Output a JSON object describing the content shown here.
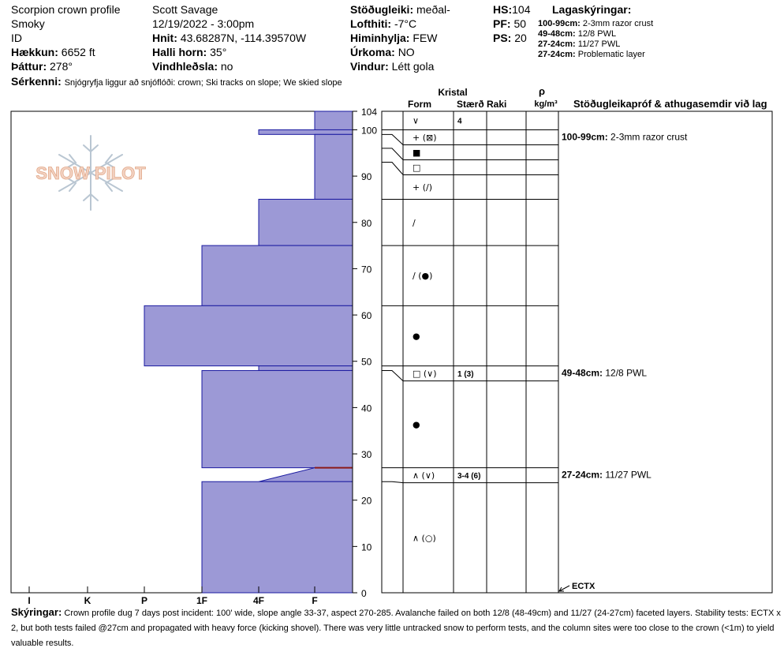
{
  "header": {
    "title": "Scorpion crown profile",
    "range": "Smoky",
    "id": "ID",
    "elevation_label": "Hækkun:",
    "elevation": "6652 ft",
    "aspect_label": "Þáttur:",
    "aspect": "278°",
    "observer": "Scott Savage",
    "datetime": "12/19/2022 - 3:00pm",
    "coords_label": "Hnit:",
    "coords": "43.68287N, -114.39570W",
    "slope_label": "Halli horn:",
    "slope": "35°",
    "wind_loading_label": "Vindhleðsla:",
    "wind_loading": "no",
    "stability_label": "Stöðugleiki:",
    "stability": "meðal-",
    "air_temp_label": "Lofthiti:",
    "air_temp": "-7°C",
    "sky_label": "Himinhylja:",
    "sky": "FEW",
    "precip_label": "Úrkoma:",
    "precip": "NO",
    "wind_label": "Vindur:",
    "wind": "Létt gola",
    "hs_label": "HS:",
    "hs": "104",
    "pf_label": "PF:",
    "pf": "50",
    "ps_label": "PS:",
    "ps": "20",
    "features_label": "Sérkenni:",
    "features": "Snjógryfja liggur að snjóflóði: crown; Ski tracks on slope; We skied slope"
  },
  "legend": {
    "title": "Lagaskýringar:",
    "items": [
      {
        "range": "100-99cm:",
        "text": "2-3mm razor crust"
      },
      {
        "range": "49-48cm:",
        "text": "12/8 PWL"
      },
      {
        "range": "27-24cm:",
        "text": "11/27 PWL"
      },
      {
        "range": "27-24cm:",
        "text": "Problematic layer"
      }
    ]
  },
  "logo": {
    "text": "SNOW PILOT"
  },
  "columns": {
    "crystal": "Kristal",
    "form": "Form",
    "size": "Stærð",
    "moisture": "Raki",
    "rho": "ρ",
    "density_unit": "kg/m³",
    "tests": "Stöðugleikapróf & athugasemdir við lag"
  },
  "chart_data": {
    "type": "bar",
    "orientation": "horizontal",
    "x_categories": [
      "I",
      "K",
      "P",
      "1F",
      "4F",
      "F"
    ],
    "y_ticks": [
      0,
      10,
      20,
      30,
      40,
      50,
      60,
      70,
      80,
      90,
      100,
      104
    ],
    "ylim": [
      0,
      104
    ],
    "hs": 104,
    "hardness_layers": [
      {
        "top": 104,
        "bottom": 100,
        "hardness": "F"
      },
      {
        "top": 100,
        "bottom": 99,
        "hardness": "4F"
      },
      {
        "top": 99,
        "bottom": 85,
        "hardness": "F"
      },
      {
        "top": 85,
        "bottom": 75,
        "hardness": "4F"
      },
      {
        "top": 75,
        "bottom": 62,
        "hardness": "1F"
      },
      {
        "top": 62,
        "bottom": 49,
        "hardness": "P"
      },
      {
        "top": 49,
        "bottom": 48,
        "hardness": "4F"
      },
      {
        "top": 48,
        "bottom": 27,
        "hardness": "1F"
      },
      {
        "top": 27,
        "bottom": 24,
        "hardness": "F to 4F"
      },
      {
        "top": 24,
        "bottom": 0,
        "hardness": "1F"
      }
    ],
    "crust_line": {
      "depth": 27,
      "color": "#8b1a1a"
    },
    "fill_color": "#9c99d6",
    "stroke_color": "#1a1aa0",
    "layers": [
      {
        "top": 104,
        "bottom": 100,
        "form": "∨",
        "size": "4"
      },
      {
        "top": 100,
        "bottom": 99,
        "form": "+ (⊠)",
        "size": ""
      },
      {
        "top": 99,
        "bottom": 96,
        "form": "■",
        "size": ""
      },
      {
        "top": 96,
        "bottom": 93,
        "form": "□",
        "size": ""
      },
      {
        "top": 93,
        "bottom": 85,
        "form": "+ (∕)",
        "size": ""
      },
      {
        "top": 85,
        "bottom": 75,
        "form": "∕",
        "size": ""
      },
      {
        "top": 75,
        "bottom": 62,
        "form": "∕ (●)",
        "size": ""
      },
      {
        "top": 62,
        "bottom": 49,
        "form": "●",
        "size": ""
      },
      {
        "top": 49,
        "bottom": 48,
        "form": "□ (∨)",
        "size": "1 (3)"
      },
      {
        "top": 48,
        "bottom": 27,
        "form": "●",
        "size": ""
      },
      {
        "top": 27,
        "bottom": 24,
        "form": "∧ (∨)",
        "size": "3-4 (6)"
      },
      {
        "top": 24,
        "bottom": 0,
        "form": "∧ (○)",
        "size": ""
      }
    ],
    "comments": [
      {
        "depth": 100,
        "range": "100-99cm:",
        "text": "2-3mm razor crust"
      },
      {
        "depth": 49,
        "range": "49-48cm:",
        "text": "12/8 PWL"
      },
      {
        "depth": 27,
        "range": "27-24cm:",
        "text": "11/27 PWL"
      }
    ],
    "test_marker": {
      "depth": 0,
      "label": "ECTX"
    }
  },
  "notes": {
    "label": "Skýringar:",
    "text": "Crown profile dug 7 days post incident: 100' wide, slope angle 33-37, aspect 270-285. Avalanche failed on both 12/8 (48-49cm) and 11/27 (24-27cm) faceted layers. Stability tests: ECTX x 2, but both tests failed @27cm and propagated with heavy force (kicking shovel). There was very little untracked snow to perform tests, and the column sites were too close to the crown (<1m) to yield valuable results."
  }
}
